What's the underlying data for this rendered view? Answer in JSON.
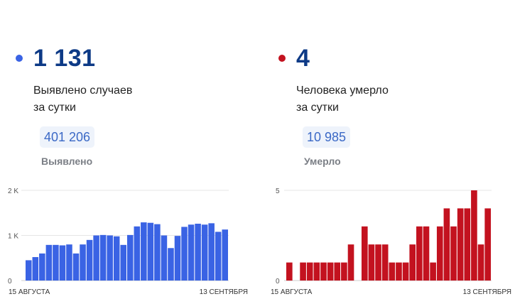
{
  "colors": {
    "cases": "#3a63e4",
    "deaths": "#c3121f",
    "number": "#0d3a86",
    "grid": "#e6e6e6"
  },
  "cases_panel": {
    "value": "1 131",
    "caption_line1": "Выявлено случаев",
    "caption_line2": "за сутки",
    "total": "401 206",
    "total_label": "Выявлено"
  },
  "deaths_panel": {
    "value": "4",
    "caption_line1": "Человека умерло",
    "caption_line2": "за сутки",
    "total": "10 985",
    "total_label": "Умерло"
  },
  "chart_data": [
    {
      "type": "bar",
      "series_color": "#3a63e4",
      "ylim": [
        0,
        2000
      ],
      "ytick_values": [
        0,
        1000,
        2000
      ],
      "ytick_labels": [
        "0",
        "1 K",
        "2 K"
      ],
      "x_start_label": "15 АВГУСТА",
      "x_end_label": "13 СЕНТЯБРЯ",
      "values": [
        450,
        520,
        600,
        790,
        790,
        780,
        800,
        600,
        800,
        900,
        1000,
        1010,
        1000,
        980,
        790,
        1010,
        1200,
        1290,
        1280,
        1250,
        1000,
        720,
        990,
        1190,
        1240,
        1260,
        1240,
        1270,
        1080,
        1131
      ]
    },
    {
      "type": "bar",
      "series_color": "#c3121f",
      "ylim": [
        0,
        5
      ],
      "ytick_values": [
        0,
        5
      ],
      "ytick_labels": [
        "0",
        "5"
      ],
      "x_start_label": "15 АВГУСТА",
      "x_end_label": "13 СЕНТЯБРЯ",
      "values": [
        1,
        0,
        1,
        1,
        1,
        1,
        1,
        1,
        1,
        2,
        0,
        3,
        2,
        2,
        2,
        1,
        1,
        1,
        2,
        3,
        3,
        1,
        3,
        4,
        3,
        4,
        4,
        5,
        2,
        4
      ]
    }
  ]
}
